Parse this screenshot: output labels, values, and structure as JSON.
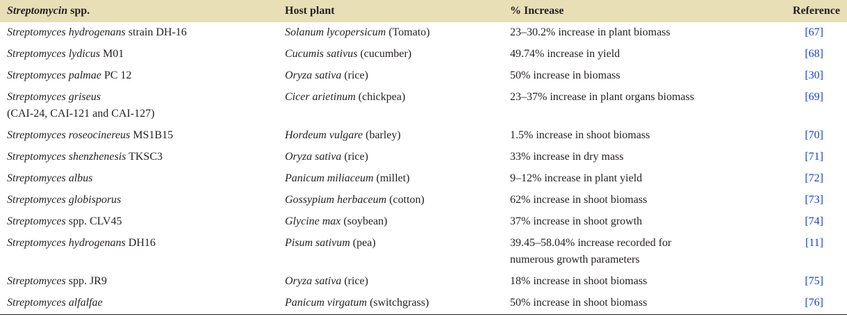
{
  "header": {
    "col1_italic": "Streptomycin",
    "col1_rest": " spp.",
    "col2": "Host plant",
    "col3": "% Increase",
    "col4": "Reference"
  },
  "rows": [
    {
      "sp_i": " Streptomyces hydrogenans",
      "sp_r": " strain DH-16",
      "sp_l2": "",
      "host_i": "Solanum lycopersicum",
      "host_r": " (Tomato)",
      "inc": "23–30.2% increase in plant biomass",
      "inc_l2": "",
      "ref": "[67]"
    },
    {
      "sp_i": "Streptomyces lydicus",
      "sp_r": " M01",
      "sp_l2": "",
      "host_i": "Cucumis sativus",
      "host_r": " (cucumber)",
      "inc": "49.74% increase in yield",
      "inc_l2": "",
      "ref": "[68]"
    },
    {
      "sp_i": "Streptomyces palmae",
      "sp_r": " PC 12",
      "sp_l2": "",
      "host_i": "Oryza sativa",
      "host_r": " (rice)",
      "inc": "50% increase in biomass",
      "inc_l2": "",
      "ref": "[30]"
    },
    {
      "sp_i": "Streptomyces griseus",
      "sp_r": "",
      "sp_l2": "(CAI-24, CAI-121 and CAI-127)",
      "host_i": "Cicer arietinum",
      "host_r": " (chickpea)",
      "inc": "23–37% increase in plant organs biomass",
      "inc_l2": "",
      "ref": "[69]"
    },
    {
      "sp_i": "Streptomyces roseocinereus",
      "sp_r": " MS1B15",
      "sp_l2": "",
      "host_i": "Hordeum vulgare",
      "host_r": " (barley)",
      "inc": "1.5% increase in shoot biomass",
      "inc_l2": "",
      "ref": "[70]"
    },
    {
      "sp_i": "Streptomyces shenzhenesis",
      "sp_r": " TKSC3",
      "sp_l2": "",
      "host_i": "Oryza sativa",
      "host_r": " (rice)",
      "inc": "33% increase in dry mass",
      "inc_l2": "",
      "ref": "[71]"
    },
    {
      "sp_i": "Streptomyces albus",
      "sp_r": "",
      "sp_l2": "",
      "host_i": "Panicum miliaceum",
      "host_r": " (millet)",
      "inc": "9–12% increase in plant yield",
      "inc_l2": "",
      "ref": "[72]"
    },
    {
      "sp_i": "Streptomyces globisporus",
      "sp_r": "",
      "sp_l2": "",
      "host_i": "Gossypium herbaceum",
      "host_r": " (cotton)",
      "inc": "62% increase in shoot biomass",
      "inc_l2": "",
      "ref": "[73]"
    },
    {
      "sp_i": "Streptomyces",
      "sp_r": " spp. CLV45",
      "sp_l2": "",
      "host_i": "Glycine max",
      "host_r": " (soybean)",
      "inc": "37% increase in shoot growth",
      "inc_l2": "",
      "ref": "[74]"
    },
    {
      "sp_i": "Streptomyces hydrogenans",
      "sp_r": " DH16",
      "sp_l2": "",
      "host_i": "Pisum sativum",
      "host_r": " (pea)",
      "inc": "39.45–58.04% increase recorded for",
      "inc_l2": "numerous growth parameters",
      "ref": "[11]"
    },
    {
      "sp_i": "Streptomyces",
      "sp_r": " spp. JR9",
      "sp_l2": "",
      "host_i": "Oryza sativa",
      "host_r": " (rice)",
      "inc": "18% increase in shoot biomass",
      "inc_l2": "",
      "ref": "[75]"
    },
    {
      "sp_i": "Streptomyces alfalfae",
      "sp_r": "",
      "sp_l2": "",
      "host_i": "Panicum virgatum",
      "host_r": " (switchgrass)",
      "inc": "50% increase in shoot biomass",
      "inc_l2": "",
      "ref": "[76]"
    }
  ],
  "colors": {
    "header_bg": "#e8dfb6",
    "link": "#1a3fd4",
    "text": "#231f20"
  }
}
